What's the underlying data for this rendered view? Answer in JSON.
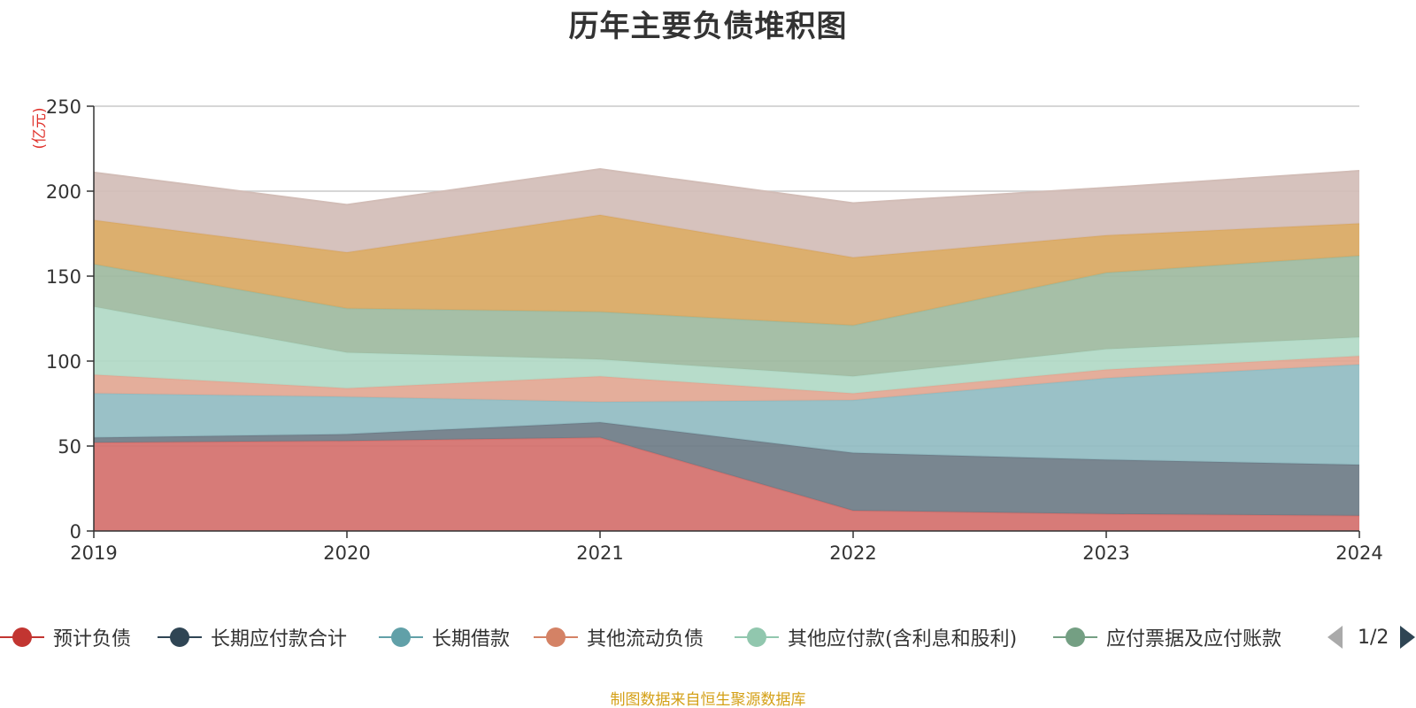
{
  "chart_data": {
    "type": "area",
    "stacked": true,
    "title": "历年主要负债堆积图",
    "ylabel": "(亿元)",
    "xlabel": "",
    "categories": [
      "2019",
      "2020",
      "2021",
      "2022",
      "2023",
      "2024"
    ],
    "ylim": [
      0,
      250
    ],
    "yticks": [
      0,
      50,
      100,
      150,
      200,
      250
    ],
    "grid": true,
    "legend_position": "bottom",
    "series": [
      {
        "name": "预计负债",
        "color": "#c23531",
        "fill": "#d4706d",
        "values": [
          52,
          53,
          55,
          12,
          10,
          9
        ]
      },
      {
        "name": "长期应付款合计",
        "color": "#2f4554",
        "fill": "#6e7c87",
        "values": [
          3,
          4,
          9,
          34,
          32,
          30
        ]
      },
      {
        "name": "长期借款",
        "color": "#61a0a8",
        "fill": "#91bcc2",
        "values": [
          26,
          22,
          12,
          31,
          48,
          59
        ]
      },
      {
        "name": "其他流动负债",
        "color": "#d48265",
        "fill": "#e2a793",
        "values": [
          11,
          5,
          15,
          4,
          5,
          5
        ]
      },
      {
        "name": "其他应付款(含利息和股利)",
        "color": "#91c7ae",
        "fill": "#b1d9c6",
        "values": [
          40,
          21,
          10,
          10,
          12,
          11
        ]
      },
      {
        "name": "应付票据及应付账款",
        "color": "#749f83",
        "fill": "#9eba9f",
        "values": [
          25,
          26,
          28,
          30,
          45,
          48
        ]
      },
      {
        "name": "",
        "color": "#ca8622",
        "fill": "#d9a862",
        "values": [
          26,
          33,
          57,
          40,
          22,
          19
        ]
      },
      {
        "name": "",
        "color": "#bda29a",
        "fill": "#d2bdb7",
        "values": [
          28,
          28,
          27,
          32,
          28,
          31
        ]
      }
    ]
  },
  "legend": {
    "page_indicator": "1/2"
  },
  "footer": {
    "source": "制图数据来自恒生聚源数据库"
  }
}
